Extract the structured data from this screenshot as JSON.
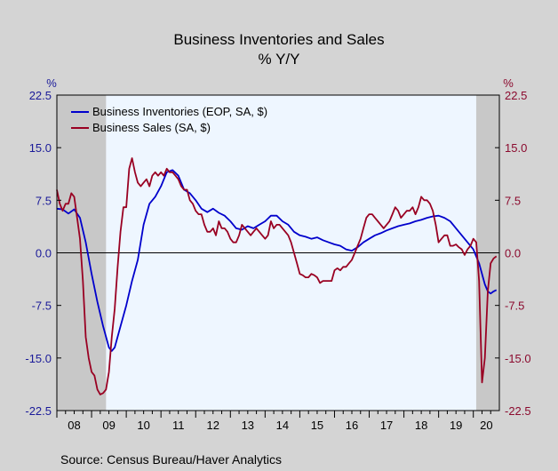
{
  "chart_data": {
    "type": "line",
    "title": "Business Inventories and Sales",
    "subtitle": "% Y/Y",
    "left_unit": "%",
    "right_unit": "%",
    "source": "Source:  Census Bureau/Haver Analytics",
    "ylim": [
      -22.5,
      22.5
    ],
    "y_ticks": [
      "22.5",
      "15.0",
      "7.5",
      "0.0",
      "-7.5",
      "-15.0",
      "-22.5"
    ],
    "y_tick_values": [
      22.5,
      15.0,
      7.5,
      0.0,
      -7.5,
      -15.0,
      -22.5
    ],
    "x_categories": [
      "08",
      "09",
      "10",
      "11",
      "12",
      "13",
      "14",
      "15",
      "16",
      "17",
      "18",
      "19",
      "20"
    ],
    "x_range": [
      "2008-01",
      "2020-10"
    ],
    "recessions": [
      [
        "2008-01",
        "2009-06"
      ],
      [
        "2020-02",
        "2020-10"
      ]
    ],
    "grid": false,
    "legend_position": "top-left",
    "colors": {
      "inventories": "#0000cc",
      "sales": "#990022",
      "recession": "#c8c8c8",
      "plot_bg": "#eef6ff",
      "axis_text_left": "#1a1a99",
      "axis_text_right": "#8b0a2e"
    },
    "series": [
      {
        "name": "Business Inventories (EOP, SA, $)",
        "color": "#0000cc",
        "points": [
          [
            "2008-01",
            6.3
          ],
          [
            "2008-03",
            6.2
          ],
          [
            "2008-05",
            5.6
          ],
          [
            "2008-07",
            6.2
          ],
          [
            "2008-09",
            5.0
          ],
          [
            "2008-11",
            1.5
          ],
          [
            "2009-01",
            -3.0
          ],
          [
            "2009-03",
            -7.0
          ],
          [
            "2009-05",
            -10.5
          ],
          [
            "2009-07",
            -13.5
          ],
          [
            "2009-08",
            -14.0
          ],
          [
            "2009-09",
            -13.5
          ],
          [
            "2009-11",
            -10.5
          ],
          [
            "2010-01",
            -7.5
          ],
          [
            "2010-03",
            -4.0
          ],
          [
            "2010-05",
            -1.0
          ],
          [
            "2010-07",
            4.0
          ],
          [
            "2010-09",
            7.0
          ],
          [
            "2010-11",
            8.0
          ],
          [
            "2011-01",
            9.5
          ],
          [
            "2011-03",
            11.5
          ],
          [
            "2011-05",
            11.8
          ],
          [
            "2011-07",
            11.0
          ],
          [
            "2011-09",
            9.0
          ],
          [
            "2011-11",
            8.5
          ],
          [
            "2012-01",
            7.5
          ],
          [
            "2012-03",
            6.3
          ],
          [
            "2012-05",
            5.8
          ],
          [
            "2012-07",
            6.3
          ],
          [
            "2012-09",
            5.7
          ],
          [
            "2012-11",
            5.3
          ],
          [
            "2013-01",
            4.5
          ],
          [
            "2013-03",
            3.5
          ],
          [
            "2013-05",
            3.3
          ],
          [
            "2013-07",
            3.8
          ],
          [
            "2013-09",
            3.5
          ],
          [
            "2013-11",
            4.0
          ],
          [
            "2014-01",
            4.5
          ],
          [
            "2014-03",
            5.3
          ],
          [
            "2014-05",
            5.3
          ],
          [
            "2014-07",
            4.5
          ],
          [
            "2014-09",
            4.0
          ],
          [
            "2014-11",
            3.0
          ],
          [
            "2015-01",
            2.5
          ],
          [
            "2015-03",
            2.3
          ],
          [
            "2015-05",
            2.0
          ],
          [
            "2015-07",
            2.2
          ],
          [
            "2015-09",
            1.8
          ],
          [
            "2015-11",
            1.5
          ],
          [
            "2016-01",
            1.2
          ],
          [
            "2016-03",
            1.0
          ],
          [
            "2016-05",
            0.5
          ],
          [
            "2016-07",
            0.3
          ],
          [
            "2016-09",
            0.8
          ],
          [
            "2016-11",
            1.5
          ],
          [
            "2017-01",
            2.0
          ],
          [
            "2017-03",
            2.5
          ],
          [
            "2017-05",
            2.8
          ],
          [
            "2017-07",
            3.2
          ],
          [
            "2017-09",
            3.5
          ],
          [
            "2017-11",
            3.8
          ],
          [
            "2018-01",
            4.0
          ],
          [
            "2018-03",
            4.2
          ],
          [
            "2018-05",
            4.5
          ],
          [
            "2018-07",
            4.7
          ],
          [
            "2018-09",
            5.0
          ],
          [
            "2018-11",
            5.2
          ],
          [
            "2019-01",
            5.3
          ],
          [
            "2019-03",
            5.0
          ],
          [
            "2019-05",
            4.5
          ],
          [
            "2019-07",
            3.5
          ],
          [
            "2019-09",
            2.5
          ],
          [
            "2019-11",
            1.5
          ],
          [
            "2020-01",
            0.5
          ],
          [
            "2020-03",
            -1.5
          ],
          [
            "2020-05",
            -4.5
          ],
          [
            "2020-06",
            -5.5
          ],
          [
            "2020-07",
            -5.8
          ],
          [
            "2020-08",
            -5.5
          ],
          [
            "2020-09",
            -5.3
          ]
        ]
      },
      {
        "name": "Business Sales (SA, $)",
        "color": "#990022",
        "points": [
          [
            "2008-01",
            9.0
          ],
          [
            "2008-02",
            7.0
          ],
          [
            "2008-03",
            6.0
          ],
          [
            "2008-04",
            7.0
          ],
          [
            "2008-05",
            7.0
          ],
          [
            "2008-06",
            8.5
          ],
          [
            "2008-07",
            8.0
          ],
          [
            "2008-08",
            5.0
          ],
          [
            "2008-09",
            2.0
          ],
          [
            "2008-10",
            -4.0
          ],
          [
            "2008-11",
            -12.0
          ],
          [
            "2008-12",
            -15.0
          ],
          [
            "2009-01",
            -17.0
          ],
          [
            "2009-02",
            -17.5
          ],
          [
            "2009-03",
            -19.5
          ],
          [
            "2009-04",
            -20.2
          ],
          [
            "2009-05",
            -20.0
          ],
          [
            "2009-06",
            -19.5
          ],
          [
            "2009-07",
            -17.0
          ],
          [
            "2009-08",
            -12.0
          ],
          [
            "2009-09",
            -8.0
          ],
          [
            "2009-10",
            -2.0
          ],
          [
            "2009-11",
            3.0
          ],
          [
            "2009-12",
            6.5
          ],
          [
            "2010-01",
            6.5
          ],
          [
            "2010-02",
            12.0
          ],
          [
            "2010-03",
            13.5
          ],
          [
            "2010-04",
            11.5
          ],
          [
            "2010-05",
            10.0
          ],
          [
            "2010-06",
            9.5
          ],
          [
            "2010-07",
            10.0
          ],
          [
            "2010-08",
            10.5
          ],
          [
            "2010-09",
            9.5
          ],
          [
            "2010-10",
            11.0
          ],
          [
            "2010-11",
            11.5
          ],
          [
            "2010-12",
            11.0
          ],
          [
            "2011-01",
            11.5
          ],
          [
            "2011-02",
            11.0
          ],
          [
            "2011-03",
            12.0
          ],
          [
            "2011-04",
            11.5
          ],
          [
            "2011-05",
            11.5
          ],
          [
            "2011-06",
            11.0
          ],
          [
            "2011-07",
            10.5
          ],
          [
            "2011-08",
            9.5
          ],
          [
            "2011-09",
            9.0
          ],
          [
            "2011-10",
            9.0
          ],
          [
            "2011-11",
            7.5
          ],
          [
            "2011-12",
            7.0
          ],
          [
            "2012-01",
            6.0
          ],
          [
            "2012-02",
            5.5
          ],
          [
            "2012-03",
            5.5
          ],
          [
            "2012-04",
            4.0
          ],
          [
            "2012-05",
            3.0
          ],
          [
            "2012-06",
            3.0
          ],
          [
            "2012-07",
            3.5
          ],
          [
            "2012-08",
            2.5
          ],
          [
            "2012-09",
            4.5
          ],
          [
            "2012-10",
            3.5
          ],
          [
            "2012-11",
            3.5
          ],
          [
            "2012-12",
            3.0
          ],
          [
            "2013-01",
            2.0
          ],
          [
            "2013-02",
            1.5
          ],
          [
            "2013-03",
            1.5
          ],
          [
            "2013-04",
            2.5
          ],
          [
            "2013-05",
            4.0
          ],
          [
            "2013-06",
            3.5
          ],
          [
            "2013-07",
            3.0
          ],
          [
            "2013-08",
            2.5
          ],
          [
            "2013-09",
            3.0
          ],
          [
            "2013-10",
            3.5
          ],
          [
            "2013-11",
            3.0
          ],
          [
            "2013-12",
            2.5
          ],
          [
            "2014-01",
            2.0
          ],
          [
            "2014-02",
            2.5
          ],
          [
            "2014-03",
            4.5
          ],
          [
            "2014-04",
            3.5
          ],
          [
            "2014-05",
            4.0
          ],
          [
            "2014-06",
            4.0
          ],
          [
            "2014-07",
            3.5
          ],
          [
            "2014-08",
            3.0
          ],
          [
            "2014-09",
            2.5
          ],
          [
            "2014-10",
            1.5
          ],
          [
            "2014-11",
            0.0
          ],
          [
            "2014-12",
            -1.5
          ],
          [
            "2015-01",
            -3.0
          ],
          [
            "2015-02",
            -3.2
          ],
          [
            "2015-03",
            -3.5
          ],
          [
            "2015-04",
            -3.5
          ],
          [
            "2015-05",
            -3.0
          ],
          [
            "2015-06",
            -3.2
          ],
          [
            "2015-07",
            -3.5
          ],
          [
            "2015-08",
            -4.3
          ],
          [
            "2015-09",
            -4.0
          ],
          [
            "2015-10",
            -4.0
          ],
          [
            "2015-11",
            -4.0
          ],
          [
            "2015-12",
            -4.0
          ],
          [
            "2016-01",
            -2.5
          ],
          [
            "2016-02",
            -2.2
          ],
          [
            "2016-03",
            -2.5
          ],
          [
            "2016-04",
            -2.0
          ],
          [
            "2016-05",
            -2.0
          ],
          [
            "2016-06",
            -1.5
          ],
          [
            "2016-07",
            -1.0
          ],
          [
            "2016-08",
            0.0
          ],
          [
            "2016-09",
            1.0
          ],
          [
            "2016-10",
            2.0
          ],
          [
            "2016-11",
            3.5
          ],
          [
            "2016-12",
            5.0
          ],
          [
            "2017-01",
            5.5
          ],
          [
            "2017-02",
            5.5
          ],
          [
            "2017-03",
            5.0
          ],
          [
            "2017-04",
            4.5
          ],
          [
            "2017-05",
            4.0
          ],
          [
            "2017-06",
            3.5
          ],
          [
            "2017-07",
            4.0
          ],
          [
            "2017-08",
            4.5
          ],
          [
            "2017-09",
            5.5
          ],
          [
            "2017-10",
            6.5
          ],
          [
            "2017-11",
            6.0
          ],
          [
            "2017-12",
            5.0
          ],
          [
            "2018-01",
            5.5
          ],
          [
            "2018-02",
            6.0
          ],
          [
            "2018-03",
            6.0
          ],
          [
            "2018-04",
            6.5
          ],
          [
            "2018-05",
            5.5
          ],
          [
            "2018-06",
            6.5
          ],
          [
            "2018-07",
            8.0
          ],
          [
            "2018-08",
            7.5
          ],
          [
            "2018-09",
            7.5
          ],
          [
            "2018-10",
            7.0
          ],
          [
            "2018-11",
            6.0
          ],
          [
            "2018-12",
            4.0
          ],
          [
            "2019-01",
            1.5
          ],
          [
            "2019-02",
            2.0
          ],
          [
            "2019-03",
            2.5
          ],
          [
            "2019-04",
            2.5
          ],
          [
            "2019-05",
            1.0
          ],
          [
            "2019-06",
            1.0
          ],
          [
            "2019-07",
            1.2
          ],
          [
            "2019-08",
            0.8
          ],
          [
            "2019-09",
            0.5
          ],
          [
            "2019-10",
            -0.3
          ],
          [
            "2019-11",
            0.5
          ],
          [
            "2019-12",
            1.0
          ],
          [
            "2020-01",
            2.0
          ],
          [
            "2020-02",
            1.5
          ],
          [
            "2020-03",
            -4.0
          ],
          [
            "2020-04",
            -18.5
          ],
          [
            "2020-05",
            -15.0
          ],
          [
            "2020-06",
            -5.5
          ],
          [
            "2020-07",
            -1.5
          ],
          [
            "2020-08",
            -0.8
          ],
          [
            "2020-09",
            -0.5
          ]
        ]
      }
    ]
  }
}
